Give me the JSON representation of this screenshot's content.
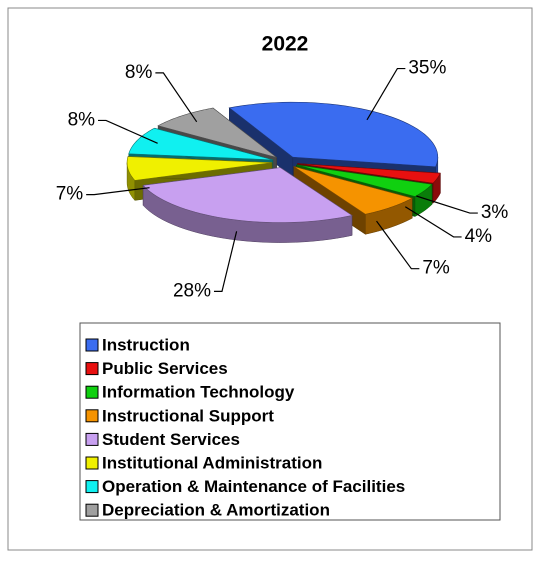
{
  "chart_data": {
    "type": "pie3d",
    "title": "2022",
    "categories": [
      "Instruction",
      "Public Services",
      "Information Technology",
      "Instructional Support",
      "Student Services",
      "Institutional Administration",
      "Operation & Maintenance of Facilities",
      "Depreciation & Amortization"
    ],
    "values": [
      35,
      3,
      4,
      7,
      28,
      7,
      8,
      8
    ],
    "value_labels": [
      "35%",
      "3%",
      "4%",
      "7%",
      "28%",
      "7%",
      "8%",
      "8%"
    ],
    "colors": [
      "#3a6cf0",
      "#e81010",
      "#10d010",
      "#f59300",
      "#c8a0f0",
      "#f0f000",
      "#10f0f0",
      "#a0a0a0"
    ],
    "legend": "bottom"
  }
}
